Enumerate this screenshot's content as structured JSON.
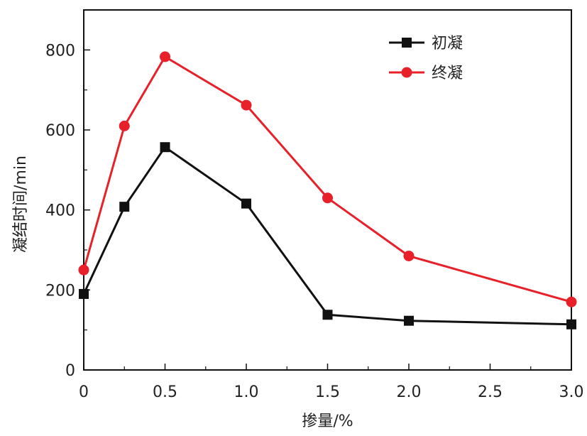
{
  "chart_data": {
    "type": "line",
    "xlabel": "掺量/%",
    "ylabel": "凝结时间/min",
    "xlim": [
      0,
      3.0
    ],
    "ylim": [
      0,
      900
    ],
    "xticks": [
      0,
      0.5,
      1.0,
      1.5,
      2.0,
      2.5,
      3.0
    ],
    "xtick_labels": [
      "0",
      "0.5",
      "1.0",
      "1.5",
      "2.0",
      "2.5",
      "3.0"
    ],
    "yticks": [
      0,
      200,
      400,
      600,
      800
    ],
    "ytick_labels": [
      "0",
      "200",
      "400",
      "600",
      "800"
    ],
    "grid": false,
    "legend_position": "top-right",
    "x": [
      0,
      0.25,
      0.5,
      1.0,
      1.5,
      2.0,
      3.0
    ],
    "series": [
      {
        "name": "初凝",
        "color": "#111111",
        "marker": "square",
        "values": [
          190,
          408,
          557,
          416,
          138,
          123,
          114
        ]
      },
      {
        "name": "终凝",
        "color": "#e8202a",
        "marker": "circle",
        "values": [
          250,
          610,
          783,
          662,
          430,
          285,
          170
        ]
      }
    ]
  }
}
